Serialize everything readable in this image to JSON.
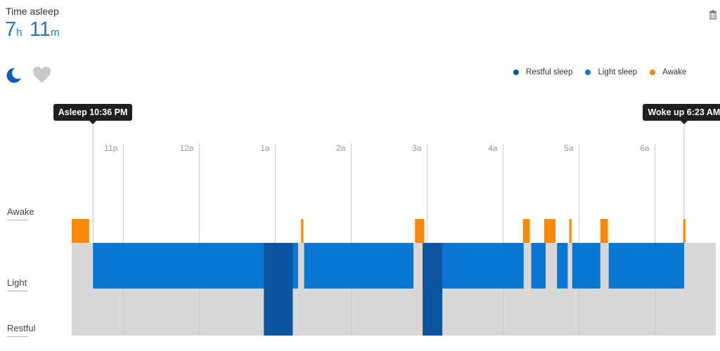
{
  "header": {
    "title": "Time asleep",
    "hours_value": "7",
    "hours_unit": "h",
    "minutes_value": "11",
    "minutes_unit": "m"
  },
  "icons": {
    "sleep": "moon-icon",
    "heart": "heart-icon",
    "delete": "trash-icon"
  },
  "legend": [
    {
      "label": "Restful sleep",
      "color": "#0b55a0"
    },
    {
      "label": "Light sleep",
      "color": "#0a78d2"
    },
    {
      "label": "Awake",
      "color": "#f7890c"
    }
  ],
  "markers": {
    "asleep": "Asleep 10:36 PM",
    "woke": "Woke up 6:23 AM"
  },
  "y_labels": {
    "awake": "Awake",
    "light": "Light",
    "restful": "Restful"
  },
  "chart_data": {
    "type": "sleep-stage-timeline",
    "title": "Time asleep",
    "x_unit": "hours from 10:00 PM",
    "x_range": [
      0.32,
      8.8
    ],
    "ticks": [
      {
        "label": "11p",
        "hour": 1
      },
      {
        "label": "12a",
        "hour": 2
      },
      {
        "label": "1a",
        "hour": 3
      },
      {
        "label": "2a",
        "hour": 4
      },
      {
        "label": "3a",
        "hour": 5
      },
      {
        "label": "4a",
        "hour": 6
      },
      {
        "label": "5a",
        "hour": 7
      },
      {
        "label": "6a",
        "hour": 8
      }
    ],
    "stages": [
      "Restful",
      "Light",
      "Awake"
    ],
    "asleep_hour": 0.6,
    "woke_hour": 8.383,
    "light_span": [
      0.6,
      8.383
    ],
    "segments": [
      {
        "stage": "awake",
        "start": 0.32,
        "end": 0.55
      },
      {
        "stage": "restful",
        "start": 2.85,
        "end": 3.23
      },
      {
        "stage": "awake",
        "start": 3.34,
        "end": 3.37
      },
      {
        "stage": "awake",
        "start": 4.84,
        "end": 4.96
      },
      {
        "stage": "restful",
        "start": 4.94,
        "end": 5.2
      },
      {
        "stage": "awake",
        "start": 6.26,
        "end": 6.35
      },
      {
        "stage": "awake",
        "start": 6.54,
        "end": 6.69
      },
      {
        "stage": "awake",
        "start": 6.87,
        "end": 6.9
      },
      {
        "stage": "awake",
        "start": 7.28,
        "end": 7.38
      },
      {
        "stage": "awake",
        "start": 8.37,
        "end": 8.4
      }
    ],
    "gaps": [
      [
        3.3,
        3.38
      ],
      [
        4.82,
        4.94
      ],
      [
        6.27,
        6.37
      ],
      [
        6.56,
        6.71
      ],
      [
        6.85,
        6.91
      ],
      [
        7.28,
        7.39
      ]
    ],
    "background_color": "#d8d8d8",
    "grid_color": "#c9c9c9"
  }
}
